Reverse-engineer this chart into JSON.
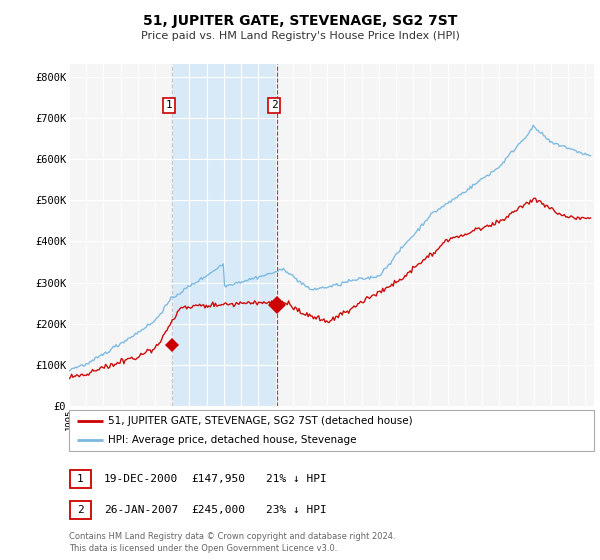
{
  "title": "51, JUPITER GATE, STEVENAGE, SG2 7ST",
  "subtitle": "Price paid vs. HM Land Registry's House Price Index (HPI)",
  "ylabel_ticks": [
    "£0",
    "£100K",
    "£200K",
    "£300K",
    "£400K",
    "£500K",
    "£600K",
    "£700K",
    "£800K"
  ],
  "ytick_values": [
    0,
    100000,
    200000,
    300000,
    400000,
    500000,
    600000,
    700000,
    800000
  ],
  "ylim": [
    0,
    830000
  ],
  "xlim_left": 1995.0,
  "xlim_right": 2025.5,
  "background_color": "#ffffff",
  "plot_bg_color": "#f5f5f5",
  "grid_color": "#ffffff",
  "hpi_color": "#7ab8e0",
  "price_color": "#cc0000",
  "shade_color": "#d8eaf7",
  "sale1_year": 2000.97,
  "sale1_price": 147950,
  "sale2_year": 2007.07,
  "sale2_price": 245000,
  "legend_label_price": "51, JUPITER GATE, STEVENAGE, SG2 7ST (detached house)",
  "legend_label_hpi": "HPI: Average price, detached house, Stevenage",
  "annotation1_label": "1",
  "annotation1_date": "19-DEC-2000",
  "annotation1_price": "£147,950",
  "annotation1_hpi": "21% ↓ HPI",
  "annotation2_label": "2",
  "annotation2_date": "26-JAN-2007",
  "annotation2_price": "£245,000",
  "annotation2_hpi": "23% ↓ HPI",
  "footer": "Contains HM Land Registry data © Crown copyright and database right 2024.\nThis data is licensed under the Open Government Licence v3.0."
}
